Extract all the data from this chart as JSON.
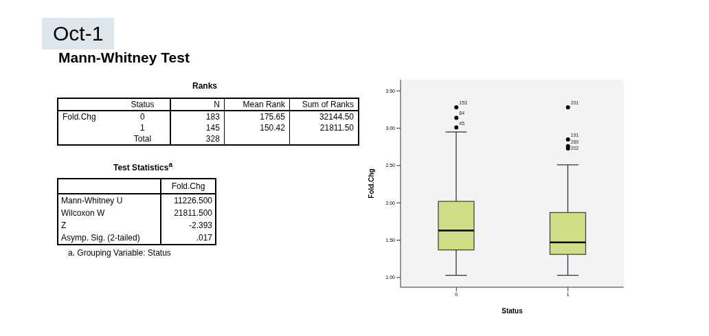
{
  "chart_data": [
    {
      "type": "other",
      "title": "Oct-1",
      "subtitle": "Mann-Whitney Test",
      "annotations": [
        "Ranks",
        "Status",
        "N",
        "Mean Rank",
        "Sum of Ranks",
        "Fold.Chg",
        "0",
        "183",
        "175.65",
        "32144.50",
        "1",
        "145",
        "150.42",
        "21811.50",
        "Total",
        "328",
        "Test Statistics$^{a}$",
        "Fold.Chg",
        "Mann-Whitney U",
        "11226.500",
        "Wilcoxon W",
        "21811.500",
        "Z",
        "-2.393",
        "Asymp. Sig. (2-tailed)",
        ".017",
        "a. Grouping Variable: Status"
      ]
    },
    {
      "type": "box",
      "xlabel": "Status",
      "ylabel": "Fold.Chg",
      "categories": [
        "0",
        "1"
      ],
      "color": "#d2dd88",
      "boxes": [
        {
          "low": 1.03,
          "q1": 1.37,
          "median": 1.63,
          "q3": 2.02,
          "high": 2.95,
          "outliers": [
            3.01,
            3.14,
            3.28
          ]
        },
        {
          "low": 1.03,
          "q1": 1.31,
          "median": 1.47,
          "q3": 1.87,
          "high": 2.51,
          "outliers": [
            2.73,
            2.76,
            2.85,
            3.28
          ]
        }
      ],
      "ylim": [
        0.87,
        3.65
      ],
      "yticks": [
        {
          "value": 1,
          "label": "1.00"
        },
        {
          "value": 1.5,
          "label": "1.50"
        },
        {
          "value": 2,
          "label": "2.00"
        },
        {
          "value": 2.5,
          "label": "2.50"
        },
        {
          "value": 3,
          "label": "3.00"
        },
        {
          "value": 3.5,
          "label": "3.50"
        }
      ],
      "grid": false,
      "annotations": [
        "45",
        "84",
        "153",
        "202",
        "260",
        "191",
        "201"
      ]
    }
  ]
}
